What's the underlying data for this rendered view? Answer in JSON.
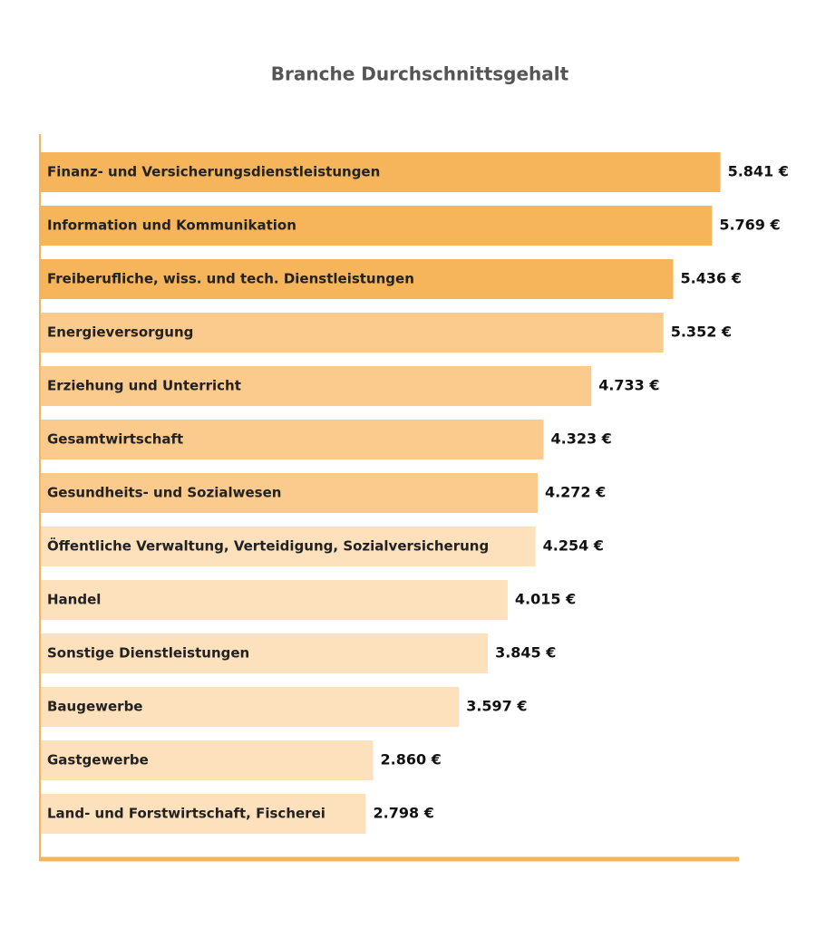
{
  "chart_data": {
    "type": "bar",
    "orientation": "horizontal",
    "title": "Branche Durchschnittsgehalt",
    "categories": [
      "Finanz- und Versicherungsdienstleistungen",
      "Information und Kommunikation",
      "Freiberufliche, wiss. und tech. Dienstleistungen",
      "Energieversorgung",
      "Erziehung und Unterricht",
      "Gesamtwirtschaft",
      "Gesundheits- und Sozialwesen",
      "Öffentliche Verwaltung, Verteidigung, Sozialversicherung",
      "Handel",
      "Sonstige Dienstleistungen",
      "Baugewerbe",
      "Gastgewerbe",
      "Land- und Forstwirtschaft, Fischerei"
    ],
    "values": [
      5841,
      5769,
      5436,
      5352,
      4733,
      4323,
      4272,
      4254,
      4015,
      3845,
      3597,
      2860,
      2798
    ],
    "value_labels": [
      "5.841 €",
      "5.769 €",
      "5.436 €",
      "5.352 €",
      "4.733 €",
      "4.323 €",
      "4.272 €",
      "4.254 €",
      "4.015 €",
      "3.845 €",
      "3.597 €",
      "2.860 €",
      "2.798 €"
    ],
    "colors": [
      "#f6b55b",
      "#f6b55b",
      "#f6b55b",
      "#fbca8d",
      "#fbca8d",
      "#fbca8d",
      "#fbca8d",
      "#fde0bc",
      "#fde0bc",
      "#fde0bc",
      "#fde0bc",
      "#fde0bc",
      "#fde0bc"
    ],
    "axis_color": "#f6b55b",
    "xlim": [
      0,
      6000
    ]
  }
}
